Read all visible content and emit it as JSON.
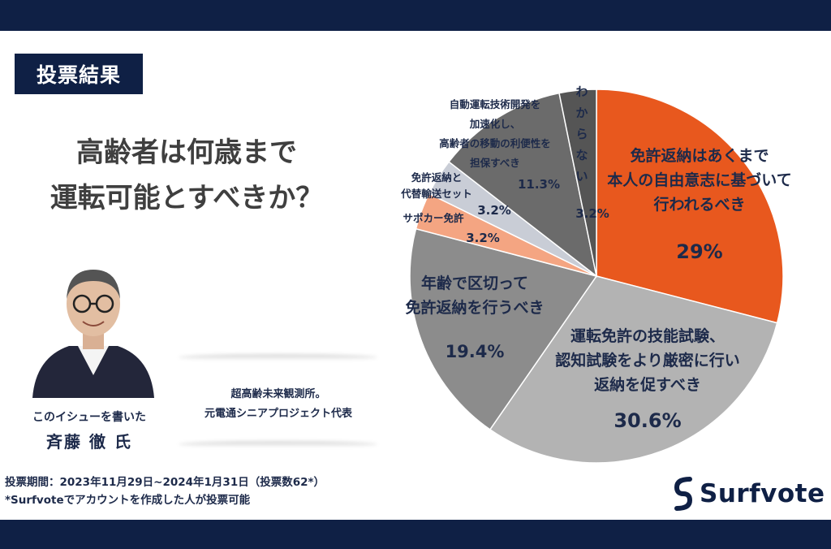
{
  "header": {
    "badge": "投票結果",
    "question_line1": "高齢者は何歳まで",
    "question_line2": "運転可能とすべきか？"
  },
  "author": {
    "caption": "このイシューを書いた",
    "name": "斉藤 徹 氏",
    "affiliation_line1": "超高齢未来観測所。",
    "affiliation_line2": "元電通シニアプロジェクト代表"
  },
  "footer": {
    "period": "投票期間：2023年11月29日~2024年1月31日（投票数62*）",
    "note": "*Surfvoteでアカウントを作成した人が投票可能",
    "logo_text": "Surfvote"
  },
  "colors": {
    "navy": "#0f2045",
    "orange": "#e8581e",
    "light_gray": "#b3b3b3",
    "mid_gray": "#8c8c8c",
    "dark_gray": "#5e5e5e",
    "peach": "#f4a582",
    "pale_gray": "#c9cdd6"
  },
  "chart_data": {
    "type": "pie",
    "slices": [
      {
        "label_lines": [
          "免許返納はあくまで",
          "本人の自由意志に基づいて",
          "行われるべき"
        ],
        "value": 29,
        "value_label": "29%",
        "color": "#e8581e"
      },
      {
        "label_lines": [
          "運転免許の技能試験、",
          "認知試験をより厳密に行い",
          "返納を促すべき"
        ],
        "value": 30.6,
        "value_label": "30.6%",
        "color": "#b3b3b3"
      },
      {
        "label_lines": [
          "年齢で区切って",
          "免許返納を行うべき"
        ],
        "value": 19.4,
        "value_label": "19.4%",
        "color": "#8c8c8c"
      },
      {
        "label_lines": [
          "サポカー免許"
        ],
        "value": 3.2,
        "value_label": "3.2%",
        "color": "#f4a582"
      },
      {
        "label_lines": [
          "免許返納と",
          "代替輸送セット"
        ],
        "value": 3.2,
        "value_label": "3.2%",
        "color": "#c9cdd6"
      },
      {
        "label_lines": [
          "自動運転技術開発を",
          "加速化し、",
          "高齢者の移動の利便性を",
          "担保すべき"
        ],
        "value": 11.3,
        "value_label": "11.3%",
        "color": "#6b6b6b"
      },
      {
        "label_lines": [
          "わからない"
        ],
        "value": 3.2,
        "value_label": "3.2%",
        "color": "#555555"
      }
    ]
  }
}
